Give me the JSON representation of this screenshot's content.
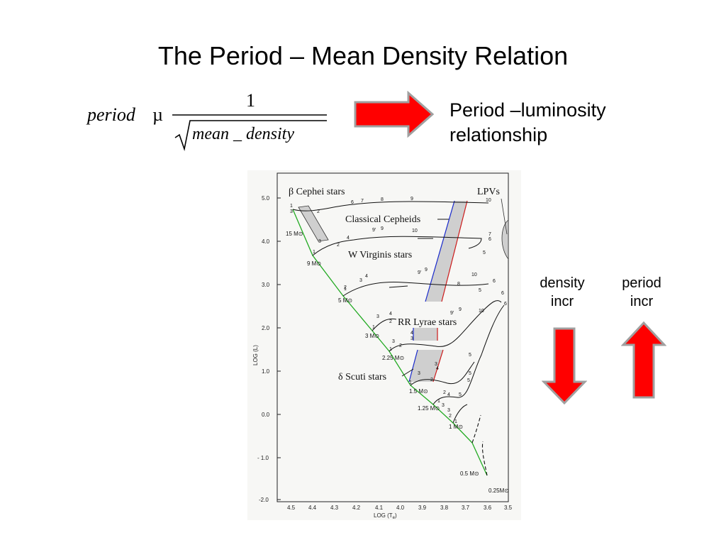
{
  "title": "The Period – Mean Density Relation",
  "formula": {
    "lhs": "period",
    "symbol": "µ",
    "numerator": "1",
    "denominator": "mean _ density"
  },
  "pl_relation": {
    "line1": "Period –luminosity",
    "line2": "relationship"
  },
  "side_labels": {
    "density": {
      "line1": "density",
      "line2": "incr"
    },
    "period": {
      "line1": "period",
      "line2": "incr"
    }
  },
  "colors": {
    "arrow_fill": "#ff0000",
    "arrow_stroke": "#a0a0a0",
    "main_sequence": "#22aa22",
    "strip_blue": "#1a2acc",
    "strip_red": "#cc1a1a",
    "strip_gray": "#d0d0d0"
  },
  "diagram": {
    "x_axis_label": "LOG (T",
    "x_axis_label_sub": "e",
    "x_axis_label_end": ")",
    "y_axis_label": "LOG (L)",
    "x_ticks": [
      "4.5",
      "4.4",
      "4.3",
      "4.2",
      "4.1",
      "4.0",
      "3.9",
      "3.8",
      "3.7",
      "3.6",
      "3.5"
    ],
    "y_ticks": [
      "5.0",
      "4.0",
      "3.0",
      "2.0",
      "1.0",
      "0.0",
      "- 1.0",
      "-2.0"
    ],
    "labels": {
      "beta_cephei": "β Cephei stars",
      "lpvs": "LPVs",
      "classical_cepheids": "Classical Cepheids",
      "w_virginis": "W Virginis stars",
      "rr_lyrae": "RR Lyrae stars",
      "delta_scuti": "δ Scuti stars"
    },
    "masses": [
      "15 M⊙",
      "9 M⊙",
      "5 M⊙",
      "3 M⊙",
      "2.25 M⊙",
      "1.5 M⊙",
      "1.25 M⊙",
      "1 M⊙",
      "0.5 M⊙",
      "0.25M⊙"
    ]
  }
}
